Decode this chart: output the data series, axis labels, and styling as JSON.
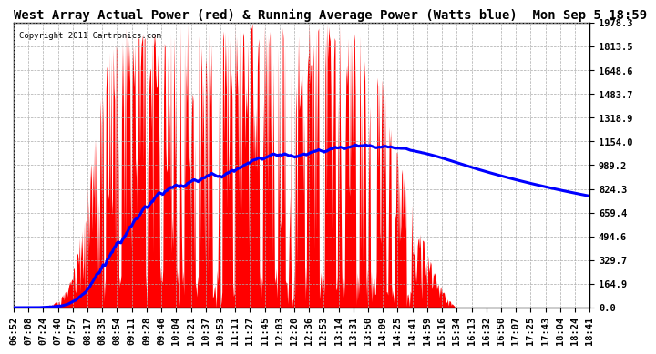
{
  "title": "West Array Actual Power (red) & Running Average Power (Watts blue)  Mon Sep 5 18:59",
  "copyright": "Copyright 2011 Cartronics.com",
  "background_color": "#ffffff",
  "plot_bg_color": "#ffffff",
  "grid_color": "#aaaaaa",
  "ytick_labels": [
    "0.0",
    "164.9",
    "329.7",
    "494.6",
    "659.4",
    "824.3",
    "989.2",
    "1154.0",
    "1318.9",
    "1483.7",
    "1648.6",
    "1813.5",
    "1978.3"
  ],
  "ytick_values": [
    0.0,
    164.9,
    329.7,
    494.6,
    659.4,
    824.3,
    989.2,
    1154.0,
    1318.9,
    1483.7,
    1648.6,
    1813.5,
    1978.3
  ],
  "xticklabels": [
    "06:52",
    "07:08",
    "07:24",
    "07:40",
    "07:57",
    "08:17",
    "08:35",
    "08:54",
    "09:11",
    "09:28",
    "09:46",
    "10:04",
    "10:21",
    "10:37",
    "10:53",
    "11:11",
    "11:27",
    "11:45",
    "12:03",
    "12:20",
    "12:36",
    "12:53",
    "13:14",
    "13:31",
    "13:50",
    "14:09",
    "14:25",
    "14:41",
    "14:59",
    "15:16",
    "15:34",
    "16:13",
    "16:32",
    "16:50",
    "17:07",
    "17:25",
    "17:43",
    "18:04",
    "18:24",
    "18:41"
  ],
  "red_color": "#ff0000",
  "blue_color": "#0000ff",
  "title_fontsize": 10,
  "tick_fontsize": 7.5,
  "ymax": 1978.3,
  "n_points": 800
}
